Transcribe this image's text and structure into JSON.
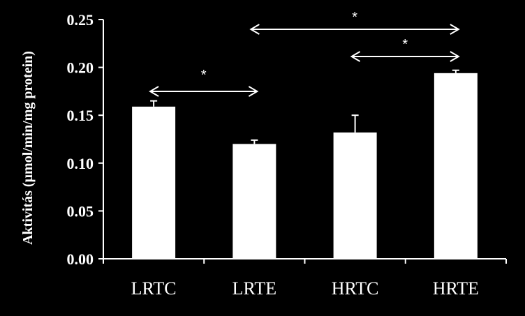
{
  "chart_data": {
    "type": "bar",
    "categories": [
      "LRTC",
      "LRTE",
      "HRTC",
      "HRTE"
    ],
    "values": [
      0.159,
      0.12,
      0.132,
      0.194
    ],
    "errors": [
      0.006,
      0.004,
      0.018,
      0.003
    ],
    "ylabel": "Aktivitás (µmol/min/mg protein)",
    "xlabel": "",
    "ylim": [
      0,
      0.25
    ],
    "yticks": [
      "0.00",
      "0.05",
      "0.10",
      "0.15",
      "0.20",
      "0.25"
    ],
    "grid": false,
    "annotations": [
      {
        "from": "LRTC",
        "to": "LRTE",
        "label": "*"
      },
      {
        "from": "LRTE",
        "to": "HRTE",
        "label": "*"
      },
      {
        "from": "HRTC",
        "to": "HRTE",
        "label": "*"
      }
    ],
    "colors": {
      "background": "#000000",
      "bar": "#ffffff",
      "axis": "#ffffff"
    }
  }
}
